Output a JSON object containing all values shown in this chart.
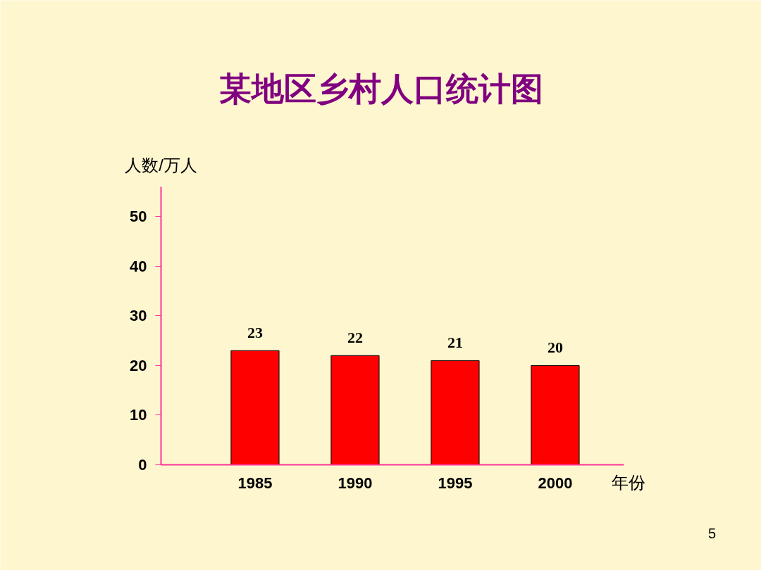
{
  "chart_data": {
    "type": "bar",
    "title": "某地区乡村人口统计图",
    "ylabel": "人数/万人",
    "xlabel": "年份",
    "categories": [
      "1985",
      "1990",
      "1995",
      "2000"
    ],
    "values": [
      23,
      22,
      21,
      20
    ],
    "color": "#ff0000",
    "ylim": [
      0,
      56
    ],
    "yticks": [
      0,
      10,
      20,
      30,
      40,
      50
    ],
    "grid": false,
    "data_labels": true,
    "annotations": [
      "5"
    ]
  }
}
